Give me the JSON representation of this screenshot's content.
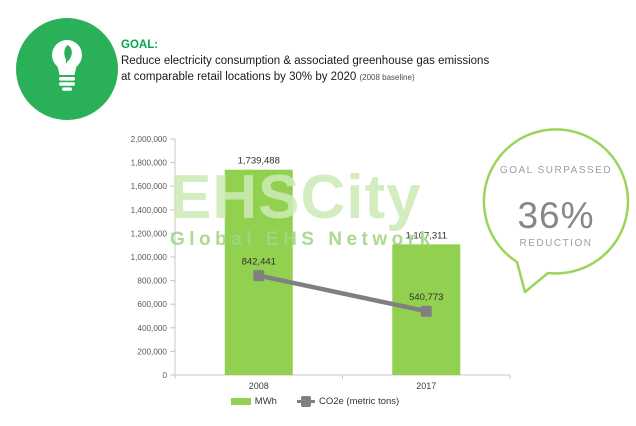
{
  "header": {
    "goal_label": "GOAL:",
    "description_line1": "Reduce electricity consumption & associated greenhouse gas emissions",
    "description_line2": "at comparable retail locations by 30% by 2020",
    "description_note": "(2008 baseline)"
  },
  "watermark": {
    "title": "EHSCity",
    "subtitle": "Global EHS Network"
  },
  "badge": {
    "line1": "GOAL SURPASSED",
    "value": "36%",
    "line2": "REDUCTION"
  },
  "chart_data": {
    "type": "bar",
    "categories": [
      "2008",
      "2017"
    ],
    "series": [
      {
        "name": "MWh",
        "type": "bar",
        "color": "#92d050",
        "values": [
          1739488,
          1107311
        ],
        "data_labels": [
          "1,739,488",
          "1,107,311"
        ]
      },
      {
        "name": "CO2e (metric tons)",
        "type": "line",
        "color": "#808080",
        "values": [
          842441,
          540773
        ],
        "data_labels": [
          "842,441",
          "540,773"
        ]
      }
    ],
    "ylim": [
      0,
      2000000
    ],
    "ytick_step": 200000,
    "grid": false,
    "legend_position": "bottom"
  },
  "colors": {
    "icon_green": "#29b058",
    "goal_text_green": "#00a551",
    "bar_green": "#92d050",
    "line_gray": "#808080",
    "bubble_stroke": "#9bd45b",
    "axis_text": "#595959",
    "axis_line": "#c0c0c0",
    "watermark_green": "#cdeab6"
  }
}
